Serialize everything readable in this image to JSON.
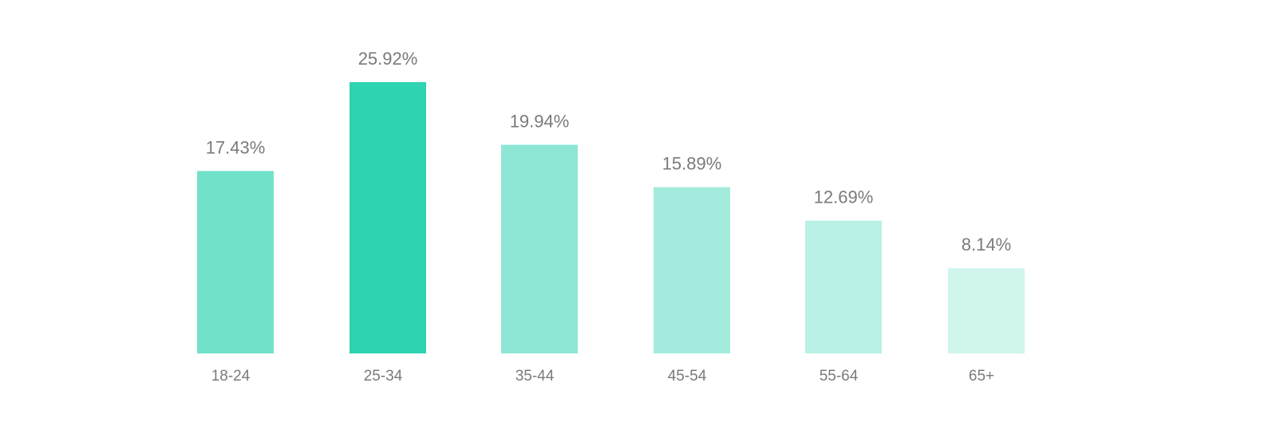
{
  "chart_data": {
    "type": "bar",
    "categories": [
      "18-24",
      "25-34",
      "35-44",
      "45-54",
      "55-64",
      "65+"
    ],
    "values": [
      17.43,
      25.92,
      19.94,
      15.89,
      12.69,
      8.14
    ],
    "data_labels": [
      "17.43%",
      "25.92%",
      "19.94%",
      "15.89%",
      "12.69%",
      "8.14%"
    ],
    "colors": [
      "#71e1ca",
      "#2ed3b1",
      "#8ee7d5",
      "#a3ecdd",
      "#b9f1e6",
      "#cff5ed"
    ],
    "title": "",
    "xlabel": "",
    "ylabel": "",
    "ylim": [
      0,
      26
    ],
    "grid": false,
    "legend": "none"
  }
}
